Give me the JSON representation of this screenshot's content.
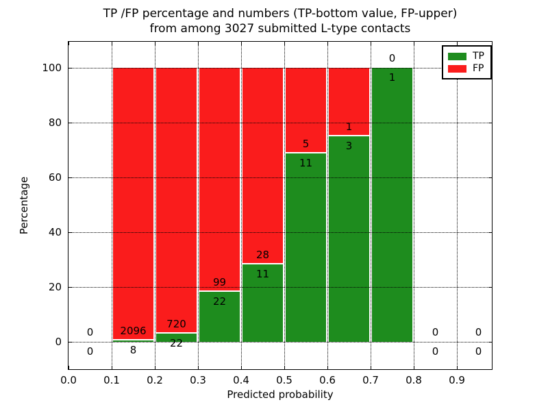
{
  "title": {
    "line1": "TP /FP percentage and numbers (TP-bottom value, FP-upper)",
    "line2": "from among 3027 submitted L-type contacts"
  },
  "axes": {
    "xlabel": "Predicted probability",
    "ylabel": "Percentage",
    "xticks": [
      {
        "value": 0.0,
        "label": "0.0"
      },
      {
        "value": 0.1,
        "label": "0.1"
      },
      {
        "value": 0.2,
        "label": "0.2"
      },
      {
        "value": 0.3,
        "label": "0.3"
      },
      {
        "value": 0.4,
        "label": "0.4"
      },
      {
        "value": 0.5,
        "label": "0.5"
      },
      {
        "value": 0.6,
        "label": "0.6"
      },
      {
        "value": 0.7,
        "label": "0.7"
      },
      {
        "value": 0.8,
        "label": "0.8"
      },
      {
        "value": 0.9,
        "label": "0.9"
      }
    ],
    "yticks": [
      {
        "value": 0,
        "label": "0"
      },
      {
        "value": 20,
        "label": "20"
      },
      {
        "value": 40,
        "label": "40"
      },
      {
        "value": 60,
        "label": "60"
      },
      {
        "value": 80,
        "label": "80"
      },
      {
        "value": 100,
        "label": "100"
      }
    ]
  },
  "legend": {
    "items": [
      {
        "label": "TP",
        "color": "#1e8c1e"
      },
      {
        "label": "FP",
        "color": "#fa1c1c"
      }
    ]
  },
  "chart_data": {
    "type": "bar",
    "stacked": true,
    "title": "TP /FP percentage and numbers (TP-bottom value, FP-upper) from among 3027 submitted L-type contacts",
    "xlabel": "Predicted probability",
    "ylabel": "Percentage",
    "xlim": [
      0.0,
      0.98
    ],
    "ylim": [
      -10,
      110
    ],
    "grid": true,
    "grid_style": "dotted",
    "legend_position": "upper right",
    "series_colors": {
      "TP": "#1e8c1e",
      "FP": "#fa1c1c"
    },
    "annotation_rule": "FP count above TP/FP boundary, TP count below boundary",
    "bins": [
      {
        "range": [
          0.0,
          0.1
        ],
        "tp": 0,
        "fp": 0,
        "tp_pct": 0.0,
        "fp_pct": 0.0
      },
      {
        "range": [
          0.1,
          0.2
        ],
        "tp": 8,
        "fp": 2096,
        "tp_pct": 0.38,
        "fp_pct": 99.62
      },
      {
        "range": [
          0.2,
          0.3
        ],
        "tp": 22,
        "fp": 720,
        "tp_pct": 2.96,
        "fp_pct": 97.04
      },
      {
        "range": [
          0.3,
          0.4
        ],
        "tp": 22,
        "fp": 99,
        "tp_pct": 18.18,
        "fp_pct": 81.82
      },
      {
        "range": [
          0.4,
          0.5
        ],
        "tp": 11,
        "fp": 28,
        "tp_pct": 28.21,
        "fp_pct": 71.79
      },
      {
        "range": [
          0.5,
          0.6
        ],
        "tp": 11,
        "fp": 5,
        "tp_pct": 68.75,
        "fp_pct": 31.25
      },
      {
        "range": [
          0.6,
          0.7
        ],
        "tp": 3,
        "fp": 1,
        "tp_pct": 75.0,
        "fp_pct": 25.0
      },
      {
        "range": [
          0.7,
          0.8
        ],
        "tp": 1,
        "fp": 0,
        "tp_pct": 100.0,
        "fp_pct": 0.0
      },
      {
        "range": [
          0.8,
          0.9
        ],
        "tp": 0,
        "fp": 0,
        "tp_pct": 0.0,
        "fp_pct": 0.0
      },
      {
        "range": [
          0.9,
          1.0
        ],
        "tp": 0,
        "fp": 0,
        "tp_pct": 0.0,
        "fp_pct": 0.0
      }
    ]
  }
}
